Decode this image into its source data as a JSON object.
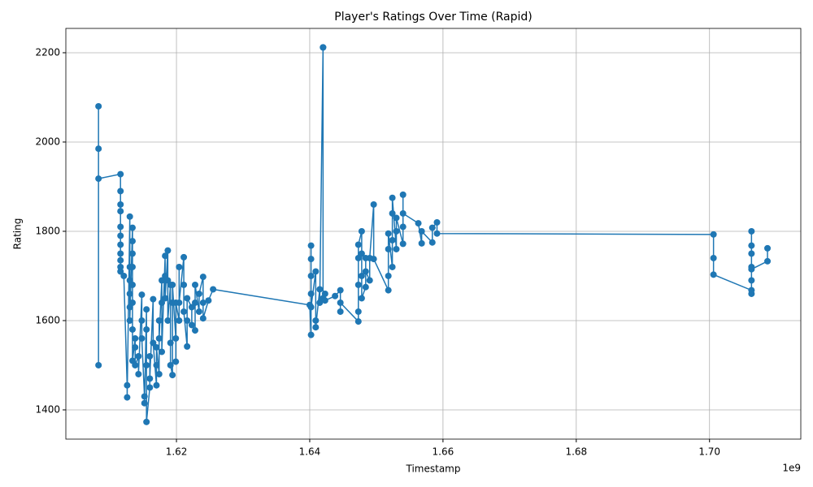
{
  "chart_data": {
    "type": "line",
    "title": "Player's Ratings Over Time (Rapid)",
    "x_label": "Timestamp",
    "y_label": "Rating",
    "x_offset_label": "1e9",
    "color": "#1f77b4",
    "markers": true,
    "grid": true,
    "xlim": [
      1.6034,
      1.7137
    ],
    "ylim": [
      1334.5,
      2254.5
    ],
    "xticks": [
      1.62,
      1.64,
      1.66,
      1.68,
      {
        "value": 1.7,
        "label": "1.70"
      }
    ],
    "yticks": [
      1400,
      1600,
      1800,
      2000,
      2200
    ],
    "x": [
      1.6083,
      1.6083,
      1.6083,
      1.6083,
      1.6116,
      1.6116,
      1.6116,
      1.6116,
      1.6116,
      1.6116,
      1.6116,
      1.6116,
      1.6116,
      1.6116,
      1.6116,
      1.6121,
      1.6126,
      1.6126,
      1.613,
      1.613,
      1.613,
      1.613,
      1.613,
      1.613,
      1.6134,
      1.6134,
      1.6134,
      1.6134,
      1.6134,
      1.6134,
      1.6134,
      1.6134,
      1.6138,
      1.6138,
      1.6138,
      1.6143,
      1.6143,
      1.6148,
      1.6148,
      1.6148,
      1.6152,
      1.6152,
      1.6155,
      1.6155,
      1.6155,
      1.6155,
      1.616,
      1.616,
      1.616,
      1.6165,
      1.6165,
      1.617,
      1.617,
      1.617,
      1.6174,
      1.6174,
      1.6174,
      1.6178,
      1.6178,
      1.6178,
      1.6183,
      1.6183,
      1.6183,
      1.6187,
      1.6187,
      1.6187,
      1.6191,
      1.6191,
      1.6191,
      1.6194,
      1.6194,
      1.6194,
      1.6199,
      1.6199,
      1.6199,
      1.6204,
      1.6204,
      1.6204,
      1.6211,
      1.6211,
      1.6211,
      1.6216,
      1.6216,
      1.6216,
      1.6223,
      1.6223,
      1.6228,
      1.6228,
      1.6228,
      1.6234,
      1.6234,
      1.624,
      1.624,
      1.624,
      1.6248,
      1.6255,
      1.64,
      1.6402,
      1.6402,
      1.6402,
      1.6402,
      1.6402,
      1.6402,
      1.6409,
      1.6409,
      1.6409,
      1.6415,
      1.6415,
      1.642,
      1.642,
      1.642,
      1.6423,
      1.6423,
      1.6438,
      1.6446,
      1.6446,
      1.6446,
      1.6473,
      1.6473,
      1.6473,
      1.6473,
      1.6473,
      1.6478,
      1.6478,
      1.6478,
      1.6478,
      1.6484,
      1.6484,
      1.6484,
      1.649,
      1.649,
      1.6496,
      1.6496,
      1.6518,
      1.6518,
      1.6518,
      1.6518,
      1.6524,
      1.6524,
      1.6524,
      1.6524,
      1.653,
      1.653,
      1.653,
      1.654,
      1.654,
      1.654,
      1.654,
      1.6563,
      1.6568,
      1.6568,
      1.6584,
      1.6584,
      1.6591,
      1.6591,
      1.7006,
      1.7006,
      1.7006,
      1.7063,
      1.7063,
      1.7063,
      1.7063,
      1.7063,
      1.7063,
      1.7063,
      1.7063,
      1.7087,
      1.7087
    ],
    "values": [
      1500,
      2080,
      1985,
      1918,
      1928,
      1890,
      1860,
      1845,
      1810,
      1790,
      1770,
      1750,
      1735,
      1720,
      1710,
      1700,
      1455,
      1428,
      1833,
      1720,
      1690,
      1660,
      1630,
      1600,
      1808,
      1778,
      1750,
      1720,
      1680,
      1640,
      1580,
      1510,
      1560,
      1540,
      1500,
      1520,
      1480,
      1658,
      1600,
      1560,
      1430,
      1415,
      1625,
      1580,
      1500,
      1373,
      1450,
      1520,
      1470,
      1648,
      1550,
      1455,
      1500,
      1540,
      1480,
      1600,
      1560,
      1690,
      1640,
      1530,
      1745,
      1700,
      1650,
      1757,
      1690,
      1600,
      1680,
      1550,
      1500,
      1478,
      1640,
      1680,
      1560,
      1508,
      1640,
      1600,
      1720,
      1640,
      1742,
      1680,
      1620,
      1542,
      1600,
      1650,
      1630,
      1590,
      1578,
      1640,
      1680,
      1620,
      1660,
      1698,
      1640,
      1605,
      1645,
      1670,
      1635,
      1568,
      1768,
      1738,
      1700,
      1660,
      1630,
      1710,
      1600,
      1585,
      1670,
      1640,
      2212,
      2212,
      1650,
      1660,
      1645,
      1655,
      1668,
      1620,
      1640,
      1598,
      1620,
      1680,
      1740,
      1770,
      1800,
      1750,
      1700,
      1650,
      1675,
      1740,
      1710,
      1690,
      1740,
      1860,
      1738,
      1668,
      1700,
      1760,
      1795,
      1720,
      1780,
      1840,
      1875,
      1760,
      1800,
      1830,
      1772,
      1810,
      1882,
      1840,
      1818,
      1773,
      1800,
      1775,
      1808,
      1820,
      1795,
      1793,
      1740,
      1703,
      1668,
      1660,
      1690,
      1720,
      1750,
      1768,
      1800,
      1715,
      1733,
      1762
    ]
  }
}
